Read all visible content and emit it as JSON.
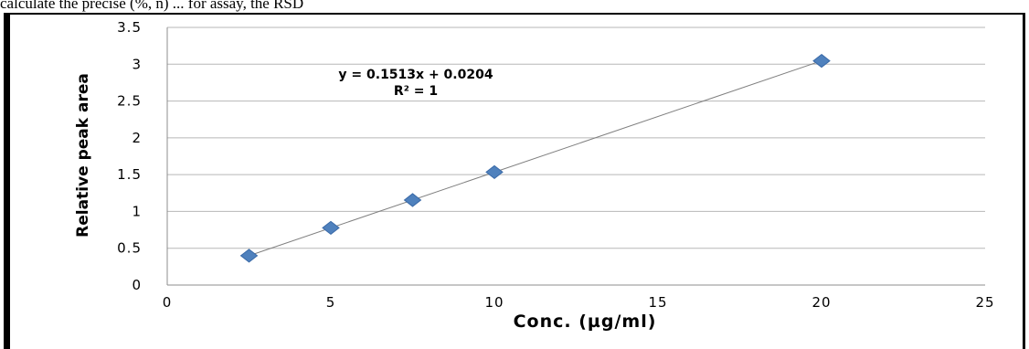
{
  "page": {
    "top_text": "calculate the precise (%, n) ... for assay, the RSD"
  },
  "colors": {
    "marker": "#4f81bd",
    "marker_edge": "#3a6aa8",
    "trendline": "#7f7f7f",
    "grid": "#b7b7b7"
  },
  "chart_data": {
    "type": "scatter",
    "title": "",
    "xlabel": "Conc. (µg/ml)",
    "ylabel": "Relative peak area",
    "xlim": [
      0,
      25
    ],
    "ylim": [
      0,
      3.5
    ],
    "x_ticks": [
      0,
      5,
      10,
      15,
      20,
      25
    ],
    "y_ticks": [
      0,
      0.5,
      1,
      1.5,
      2,
      2.5,
      3,
      3.5
    ],
    "x_tick_labels": [
      "0",
      "5",
      "10",
      "15",
      "20",
      "25"
    ],
    "y_tick_labels": [
      "0",
      "0.5",
      "1",
      "1.5",
      "2",
      "2.5",
      "3",
      "3.5"
    ],
    "grid": "horizontal",
    "series": [
      {
        "x": [
          2.5,
          5,
          7.5,
          10,
          20
        ],
        "y": [
          0.399,
          0.777,
          1.155,
          1.534,
          3.046
        ],
        "marker": "diamond"
      }
    ],
    "trendline": {
      "type": "linear",
      "slope": 0.1513,
      "intercept": 0.0204
    },
    "annotations": [
      "y = 0.1513x + 0.0204",
      "R² = 1"
    ]
  }
}
